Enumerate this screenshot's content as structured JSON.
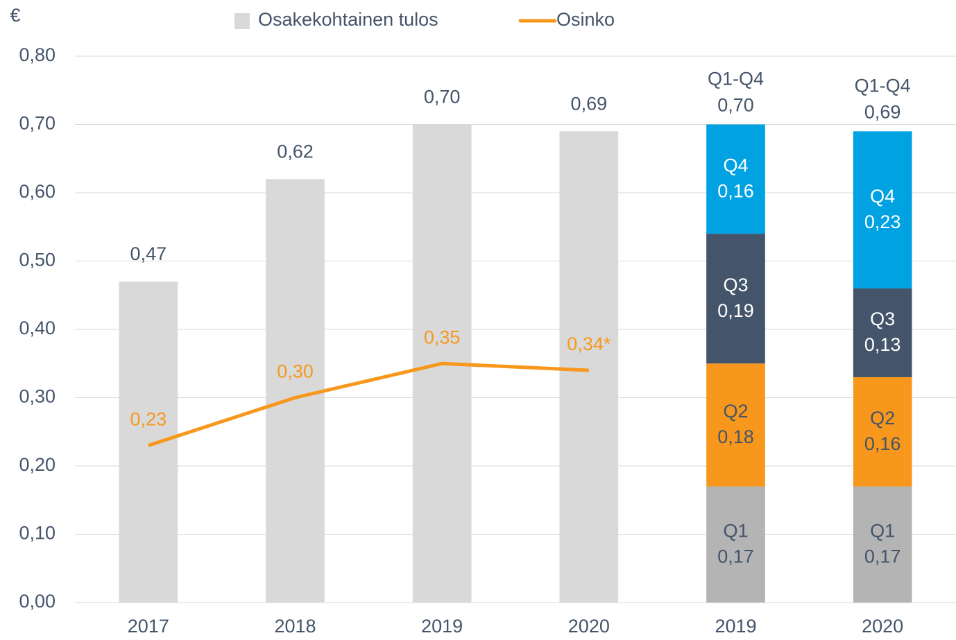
{
  "chart_data": {
    "type": "bar",
    "y_label": "€",
    "categories": [
      "2017",
      "2018",
      "2019",
      "2020",
      "2019",
      "2020"
    ],
    "series": [
      {
        "name": "Osakekohtainen tulos",
        "color": "#d9d9d9",
        "values": [
          0.47,
          0.62,
          0.7,
          0.69,
          null,
          null
        ],
        "value_labels": [
          "0,47",
          "0,62",
          "0,70",
          "0,69",
          null,
          null
        ]
      },
      {
        "name": "Osinko",
        "type": "line",
        "color": "#f7981d",
        "values": [
          0.23,
          0.3,
          0.35,
          0.34,
          null,
          null
        ],
        "value_labels": [
          "0,23",
          "0,30",
          "0,35",
          "0,34*",
          null,
          null
        ]
      }
    ],
    "stack_series": [
      {
        "name": "Q1",
        "color": "#b4b4b4",
        "label_color": "#44546a",
        "values": [
          null,
          null,
          null,
          null,
          0.17,
          0.17
        ],
        "value_labels": [
          null,
          null,
          null,
          null,
          "0,17",
          "0,17"
        ]
      },
      {
        "name": "Q2",
        "color": "#f7981d",
        "label_color": "#44546a",
        "values": [
          null,
          null,
          null,
          null,
          0.18,
          0.16
        ],
        "value_labels": [
          null,
          null,
          null,
          null,
          "0,18",
          "0,16"
        ]
      },
      {
        "name": "Q3",
        "color": "#44546a",
        "label_color": "#ffffff",
        "values": [
          null,
          null,
          null,
          null,
          0.19,
          0.13
        ],
        "value_labels": [
          null,
          null,
          null,
          null,
          "0,19",
          "0,13"
        ]
      },
      {
        "name": "Q4",
        "color": "#00a2e1",
        "label_color": "#ffffff",
        "values": [
          null,
          null,
          null,
          null,
          0.16,
          0.23
        ],
        "value_labels": [
          null,
          null,
          null,
          null,
          "0,16",
          "0,23"
        ]
      }
    ],
    "total_label": "Q1-Q4",
    "totals": [
      null,
      null,
      null,
      null,
      0.7,
      0.69
    ],
    "total_labels": [
      null,
      null,
      null,
      null,
      "0,70",
      "0,69"
    ],
    "ylim": [
      0,
      0.8
    ],
    "yticks": [
      {
        "value": 0,
        "label": "0,00"
      },
      {
        "value": 0.1,
        "label": "0,10"
      },
      {
        "value": 0.2,
        "label": "0,20"
      },
      {
        "value": 0.3,
        "label": "0,30"
      },
      {
        "value": 0.4,
        "label": "0,40"
      },
      {
        "value": 0.5,
        "label": "0,50"
      },
      {
        "value": 0.6,
        "label": "0,60"
      },
      {
        "value": 0.7,
        "label": "0,70"
      },
      {
        "value": 0.8,
        "label": "0,80"
      }
    ],
    "grid": true,
    "legend": "top"
  }
}
